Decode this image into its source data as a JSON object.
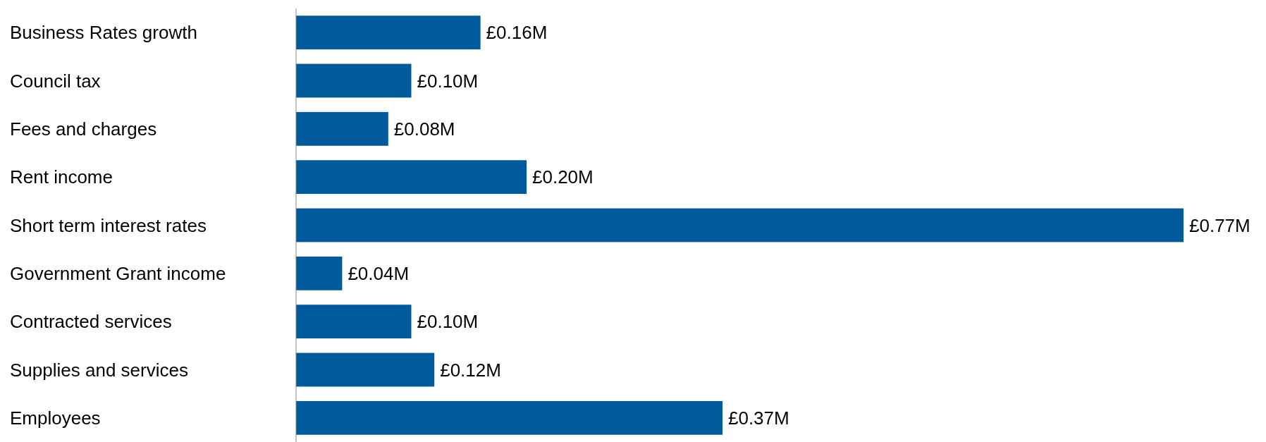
{
  "chart_data": {
    "type": "bar",
    "orientation": "horizontal",
    "categories": [
      "Business Rates growth",
      "Council tax",
      "Fees and charges",
      "Rent income",
      "Short term interest rates",
      "Government Grant income",
      "Contracted services",
      "Supplies and services",
      "Employees"
    ],
    "values": [
      0.16,
      0.1,
      0.08,
      0.2,
      0.77,
      0.04,
      0.1,
      0.12,
      0.37
    ],
    "value_labels": [
      "£0.16M",
      "£0.10M",
      "£0.08M",
      "£0.20M",
      "£0.77M",
      "£0.04M",
      "£0.10M",
      "£0.12M",
      "£0.37M"
    ],
    "color": "#005a9b"
  }
}
